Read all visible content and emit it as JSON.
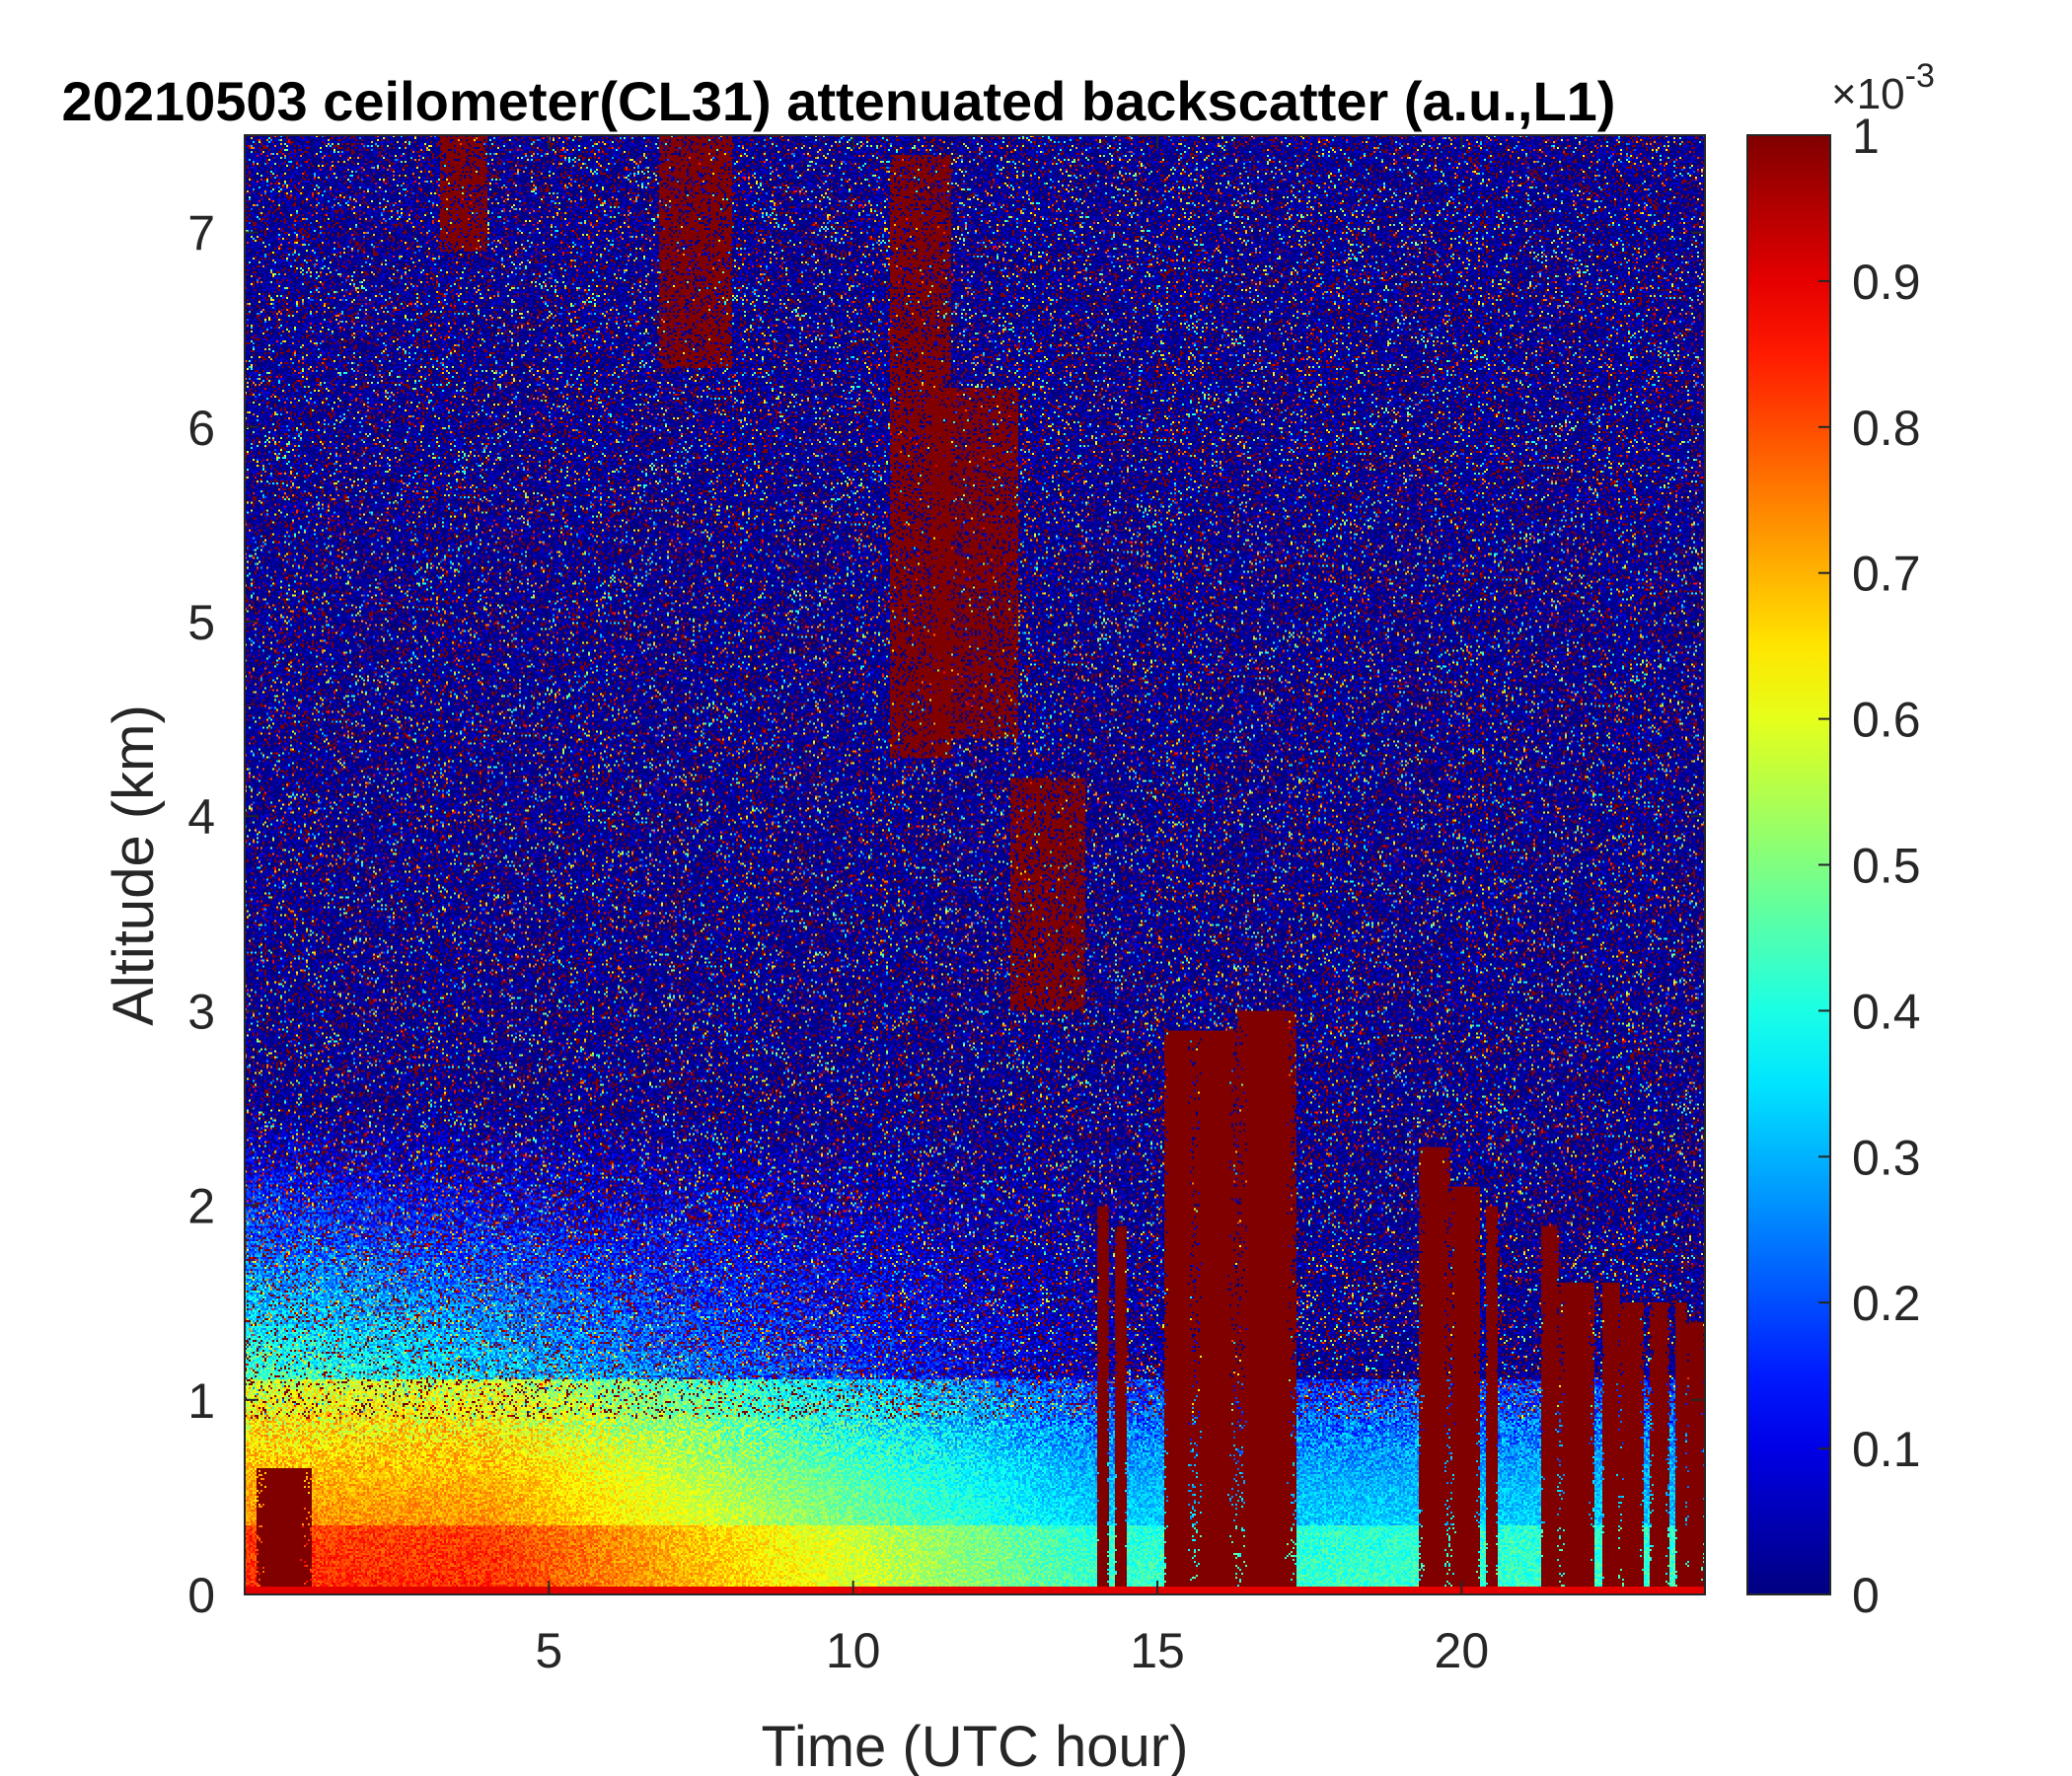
{
  "chart_data": {
    "type": "heatmap",
    "title": "20210503 ceilometer(CL31) attenuated backscatter (a.u.,L1)",
    "xlabel": "Time (UTC hour)",
    "ylabel": "Altitude (km)",
    "xlim": [
      0,
      24
    ],
    "ylim": [
      0,
      7.5
    ],
    "xticks": [
      5,
      10,
      15,
      20
    ],
    "yticks": [
      0,
      1,
      2,
      3,
      4,
      5,
      6,
      7
    ],
    "colorbar": {
      "colormap": "jet",
      "range": [
        0,
        1
      ],
      "ticks": [
        0,
        0.1,
        0.2,
        0.3,
        0.4,
        0.5,
        0.6,
        0.7,
        0.8,
        0.9,
        1
      ],
      "multiplier": "×10",
      "multiplier_exponent": "-3"
    },
    "features": {
      "boundary_layer": {
        "t_start": 0,
        "t_end": 14,
        "top_km": 1.1,
        "core_value": 0.7
      },
      "elevated_plumes": [
        {
          "t_start": 3.2,
          "t_end": 4.0,
          "alt_low": 6.9,
          "alt_high": 7.5
        },
        {
          "t_start": 6.8,
          "t_end": 8.0,
          "alt_low": 6.3,
          "alt_high": 7.5
        },
        {
          "t_start": 10.6,
          "t_end": 11.6,
          "alt_low": 4.3,
          "alt_high": 7.4
        },
        {
          "t_start": 11.3,
          "t_end": 12.7,
          "alt_low": 4.4,
          "alt_high": 6.2
        },
        {
          "t_start": 12.6,
          "t_end": 13.8,
          "alt_low": 3.0,
          "alt_high": 4.2
        }
      ],
      "cloud_columns": [
        {
          "t_start": 0.2,
          "t_end": 1.1,
          "top_km": 0.65
        },
        {
          "t_start": 14.0,
          "t_end": 14.2,
          "top_km": 2.0
        },
        {
          "t_start": 14.3,
          "t_end": 14.5,
          "top_km": 1.9
        },
        {
          "t_start": 15.1,
          "t_end": 15.6,
          "top_km": 2.9
        },
        {
          "t_start": 15.6,
          "t_end": 16.3,
          "top_km": 2.9
        },
        {
          "t_start": 16.3,
          "t_end": 17.3,
          "top_km": 3.0
        },
        {
          "t_start": 19.3,
          "t_end": 19.8,
          "top_km": 2.3
        },
        {
          "t_start": 19.8,
          "t_end": 20.3,
          "top_km": 2.1
        },
        {
          "t_start": 20.4,
          "t_end": 20.6,
          "top_km": 2.0
        },
        {
          "t_start": 21.3,
          "t_end": 21.6,
          "top_km": 1.9
        },
        {
          "t_start": 21.6,
          "t_end": 22.2,
          "top_km": 1.6
        },
        {
          "t_start": 22.3,
          "t_end": 22.6,
          "top_km": 1.6
        },
        {
          "t_start": 22.6,
          "t_end": 23.0,
          "top_km": 1.5
        },
        {
          "t_start": 23.1,
          "t_end": 23.4,
          "top_km": 1.5
        },
        {
          "t_start": 23.5,
          "t_end": 23.7,
          "top_km": 1.5
        },
        {
          "t_start": 23.7,
          "t_end": 24.0,
          "top_km": 1.4
        }
      ]
    }
  }
}
